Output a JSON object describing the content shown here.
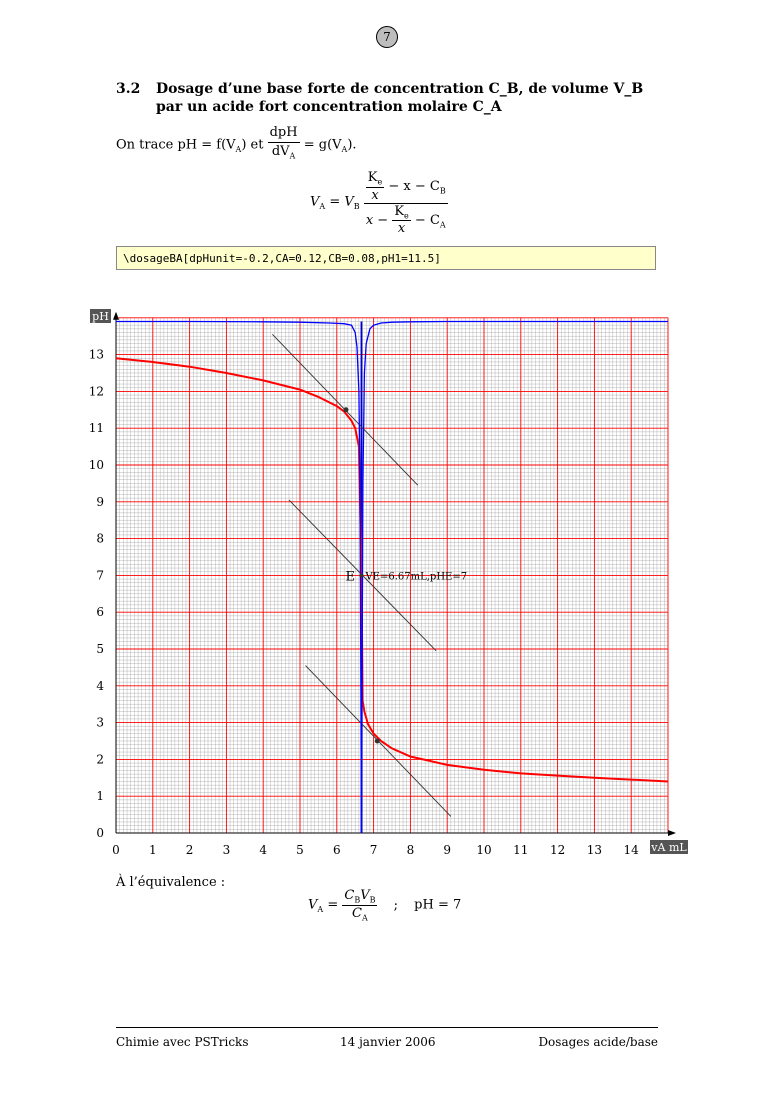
{
  "page_number": "7",
  "section": {
    "number": "3.2",
    "title": "Dosage d’une base forte de concentration C_B, de volume V_B par un acide fort concentration molaire C_A"
  },
  "intro": {
    "prefix": "On trace pH = f(V",
    "mid": ") et",
    "frac_num": "dpH",
    "frac_den": "dV",
    "suffix": "= g(V",
    "end": ")."
  },
  "formula": {
    "lhs": "V",
    "lhs_sub": "A",
    "eq": "=",
    "vb": "V",
    "vb_sub": "B",
    "ke": "K",
    "ke_sub": "e",
    "x": "x",
    "minus_x_minus_cb": "− x − C",
    "cb_sub": "B",
    "x_minus": "x −",
    "minus_ca": "− C",
    "ca_sub": "A"
  },
  "code": "\\dosageBA[dpHunit=-0.2,CA=0.12,CB=0.08,pH1=11.5]",
  "chart_data": {
    "type": "line",
    "ylabel": "pH",
    "xlabel": "vA mL",
    "xlim": [
      0,
      15
    ],
    "ylim": [
      0,
      14
    ],
    "x_ticks": [
      "0",
      "1",
      "2",
      "3",
      "4",
      "5",
      "6",
      "7",
      "8",
      "9",
      "10",
      "11",
      "12",
      "13",
      "14"
    ],
    "y_ticks": [
      "0",
      "1",
      "2",
      "3",
      "4",
      "5",
      "6",
      "7",
      "8",
      "9",
      "10",
      "11",
      "12",
      "13"
    ],
    "grid": true,
    "series": [
      {
        "color": "#ff0000",
        "x": [
          0,
          1,
          2,
          3,
          4,
          5,
          5.5,
          6,
          6.2,
          6.4,
          6.5,
          6.6,
          6.67,
          6.7,
          6.75,
          6.85,
          7.0,
          7.2,
          7.5,
          8,
          9,
          10,
          11,
          12,
          13,
          14,
          15
        ],
        "y": [
          12.9,
          12.8,
          12.67,
          12.5,
          12.3,
          12.05,
          11.85,
          11.6,
          11.45,
          11.2,
          11.0,
          10.5,
          7.0,
          3.6,
          3.3,
          2.95,
          2.7,
          2.5,
          2.3,
          2.08,
          1.85,
          1.72,
          1.62,
          1.56,
          1.5,
          1.45,
          1.4
        ]
      },
      {
        "color": "#0000ff",
        "x": [
          0,
          2,
          4,
          5,
          5.8,
          6.2,
          6.4,
          6.5,
          6.55,
          6.6,
          6.63,
          6.65,
          6.67,
          6.69,
          6.71,
          6.75,
          6.8,
          6.9,
          7.0,
          7.2,
          7.5,
          8,
          9,
          11,
          13,
          15
        ],
        "y": [
          13.9,
          13.9,
          13.89,
          13.88,
          13.86,
          13.84,
          13.8,
          13.6,
          13.2,
          12.0,
          9.5,
          5.0,
          0,
          5.0,
          9.5,
          12.5,
          13.3,
          13.7,
          13.8,
          13.86,
          13.88,
          13.89,
          13.9,
          13.9,
          13.9,
          13.9
        ]
      }
    ],
    "tangents": [
      {
        "x1": 4.25,
        "y1": 13.55,
        "x2": 8.2,
        "y2": 9.45
      },
      {
        "x1": 4.7,
        "y1": 9.05,
        "x2": 8.7,
        "y2": 4.95
      },
      {
        "x1": 5.15,
        "y1": 4.55,
        "x2": 9.1,
        "y2": 0.45
      }
    ],
    "points": [
      {
        "x": 6.25,
        "y": 11.5
      },
      {
        "x": 7.1,
        "y": 2.5
      }
    ],
    "equivalence_line": {
      "x": 6.67
    },
    "annotation": {
      "x": 6.67,
      "y": 7.0,
      "mark": "E",
      "text": "VE=6.67mL,pHE=7"
    }
  },
  "equivalence": {
    "label": "À l’équivalence :",
    "lhs": "V",
    "lhs_sub": "A",
    "eq": "=",
    "num1": "C",
    "num1_sub": "B",
    "num2": "V",
    "num2_sub": "B",
    "den": "C",
    "den_sub": "A",
    "sep": ";",
    "ph": "pH = 7"
  },
  "footer": {
    "left": "Chimie avec PSTricks",
    "center": "14 janvier 2006",
    "right": "Dosages acide/base"
  },
  "colors": {
    "major_grid": "#ff0000",
    "minor_grid": "#999999",
    "curve_ph": "#ff0000",
    "curve_derivative": "#0000ff",
    "tangent": "#333333",
    "code_bg": "#ffffcc"
  }
}
